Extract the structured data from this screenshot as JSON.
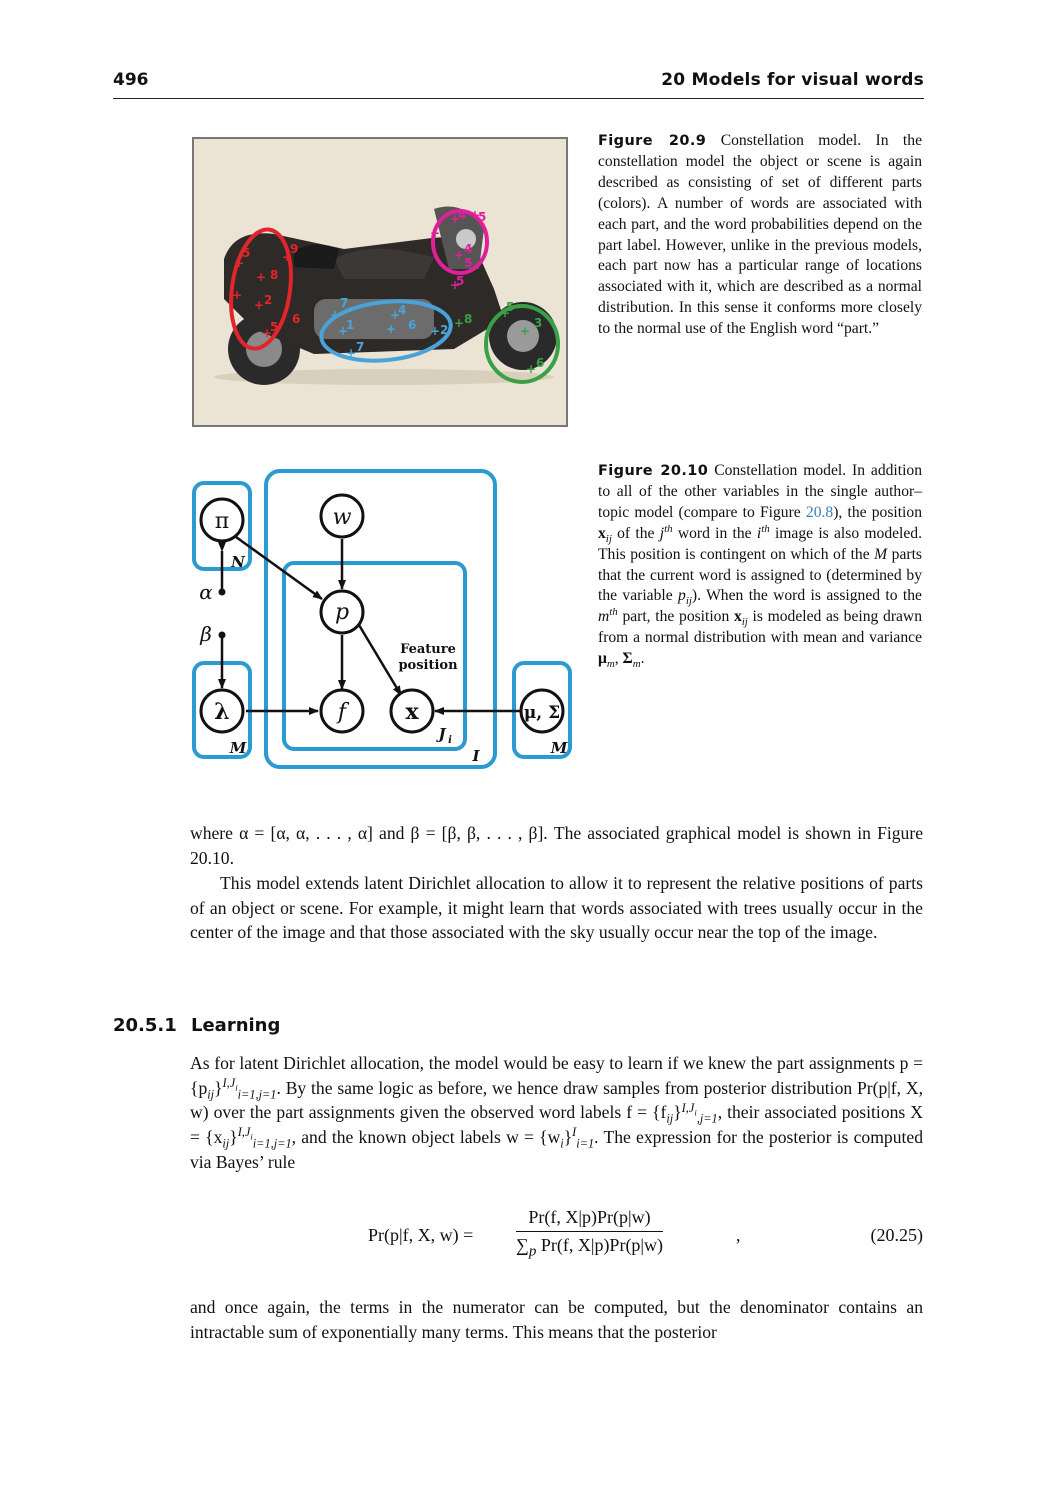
{
  "header": {
    "page_number": "496",
    "chapter_title": "20 Models for visual words"
  },
  "figure_20_9": {
    "label": "Figure 20.9",
    "caption": "Constellation model. In the constellation model the object or scene is again described as consisting of set of different parts (colors). A number of words are associated with each part, and the word probabilities depend on the part label. However, unlike in the previous models, each part now has a particular range of locations associated with it, which are described as a normal distribution. In this sense it conforms more closely to the normal use of the English word “part.”",
    "marker_labels": [
      "5",
      "9",
      "4",
      "5",
      "4",
      "5",
      "5",
      "8",
      "2",
      "6",
      "5",
      "7",
      "1",
      "4",
      "6",
      "8",
      "7",
      "2",
      "5",
      "3",
      "6"
    ],
    "colors": {
      "red": "#e0262c",
      "magenta": "#e0209a",
      "cyan": "#4aa3d8",
      "green": "#3aa046",
      "photo_bg": "#ebe4d4"
    }
  },
  "figure_20_10": {
    "label": "Figure 20.10",
    "caption_a": "Constellation model. In addition to all of the other variables in the single author–topic model (compare to Figure ",
    "caption_ref": "20.8",
    "caption_b": "), the position ",
    "caption_xij": "x",
    "caption_xij_sub": "ij",
    "caption_c": " of the ",
    "caption_j": "j",
    "caption_th": "th",
    "caption_d": " word in the ",
    "caption_i": "i",
    "caption_e": " image is also modeled. This position is contingent on which of the ",
    "caption_M": "M",
    "caption_f": " parts that the current word is assigned to (determined by the variable ",
    "caption_p": "p",
    "caption_g": "). When the word is assigned to the ",
    "caption_m": "m",
    "caption_h": " part, the position ",
    "caption_k": " is modeled as being drawn from a normal distribution with mean and variance ",
    "caption_mu": "μ",
    "caption_sigma": "Σ",
    "caption_sub_m": "m",
    "caption_end": ".",
    "nodes": {
      "pi": "π",
      "w": "w",
      "p": "p",
      "lambda": "λ",
      "f": "f",
      "x": "x",
      "mu_sigma": "μ, Σ",
      "alpha": "α",
      "beta": "β"
    },
    "plates": {
      "N": "N",
      "M_left": "M",
      "M_right": "M",
      "I": "I",
      "J": "J",
      "J_sub": "i"
    },
    "annotation_line1": "Feature",
    "annotation_line2": "position",
    "plate_color": "#2a9ad0"
  },
  "body": {
    "para1": "where α = [α, α, . . . , α] and β = [β, β, . . . , β]. The associated graphical model is shown in Figure 20.10.",
    "para2": "This model extends latent Dirichlet allocation to allow it to represent the relative positions of parts of an object or scene. For example, it might learn that words associated with trees usually occur in the center of the image and that those associated with the sky usually occur near the top of the image.",
    "section_number": "20.5.1",
    "section_title": "Learning",
    "para3_a": "As for latent Dirichlet allocation, the model would be easy to learn if we knew the part assignments p = {p",
    "para3_b": "}",
    "para3_c": ". By the same logic as before, we hence draw samples from posterior distribution Pr(p|f, X, w) over the part assignments given the observed word labels f = {f",
    "para3_d": "}",
    "para3_e": ", their associated positions X = {x",
    "para3_f": "}",
    "para3_g": ", and the known object labels w = {w",
    "para3_h": "}",
    "para3_i": ". The expression for the posterior is computed via Bayes’ rule",
    "sub_ij": "ij",
    "sub_i": "i",
    "sup_IJi": "I,J",
    "sup_i": "i",
    "sub_range": "i=1,j=1",
    "sub_range2": ",j=1",
    "sup_I": "I",
    "sub_i1": "i=1",
    "equation_lhs": "Pr(p|f, X, w) =",
    "equation_num": "Pr(f, X|p)Pr(p|w)",
    "equation_den_sum": "∑",
    "equation_den_sub": "p",
    "equation_den": " Pr(f, X|p)Pr(p|w)",
    "equation_comma": ",",
    "equation_number": "(20.25)",
    "para4": "and once again, the terms in the numerator can be computed, but the denominator contains an intractable sum of exponentially many terms. This means that the posterior"
  }
}
